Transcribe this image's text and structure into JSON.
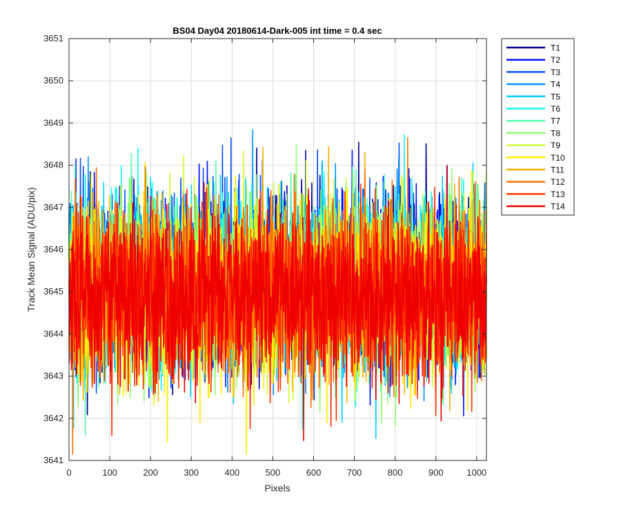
{
  "chart_data": {
    "type": "line",
    "title": "BS04 Day04 20180614-Dark-005 int time = 0.4 sec",
    "xlabel": "Pixels",
    "ylabel": "Track Mean Signal (ADU/pix)",
    "xlim": [
      0,
      1024
    ],
    "ylim": [
      3641,
      3651
    ],
    "xticks": [
      0,
      100,
      200,
      300,
      400,
      500,
      600,
      700,
      800,
      900,
      1000
    ],
    "yticks": [
      3641,
      3642,
      3643,
      3644,
      3645,
      3646,
      3647,
      3648,
      3649,
      3650,
      3651
    ],
    "grid": true,
    "legend_position": "outside-top-right",
    "noise": {
      "mean": 3645.0,
      "std": 1.0,
      "points_per_series": 1024
    },
    "series": [
      {
        "name": "T1",
        "color": "#00008f",
        "offset": 0.35
      },
      {
        "name": "T2",
        "color": "#0010ff",
        "offset": 0.3
      },
      {
        "name": "T3",
        "color": "#0050ff",
        "offset": 0.28
      },
      {
        "name": "T4",
        "color": "#0090ff",
        "offset": 0.25
      },
      {
        "name": "T5",
        "color": "#00d0ff",
        "offset": 0.22
      },
      {
        "name": "T6",
        "color": "#10ffef",
        "offset": 0.2
      },
      {
        "name": "T7",
        "color": "#50ffaf",
        "offset": 0.15
      },
      {
        "name": "T8",
        "color": "#90ff70",
        "offset": 0.1
      },
      {
        "name": "T9",
        "color": "#cfff30",
        "offset": 0.05
      },
      {
        "name": "T10",
        "color": "#ffef00",
        "offset": 0.02
      },
      {
        "name": "T11",
        "color": "#ffb000",
        "offset": 0.0
      },
      {
        "name": "T12",
        "color": "#ff7000",
        "offset": -0.02
      },
      {
        "name": "T13",
        "color": "#ff3000",
        "offset": -0.05
      },
      {
        "name": "T14",
        "color": "#ef0000",
        "offset": -0.08
      }
    ]
  }
}
